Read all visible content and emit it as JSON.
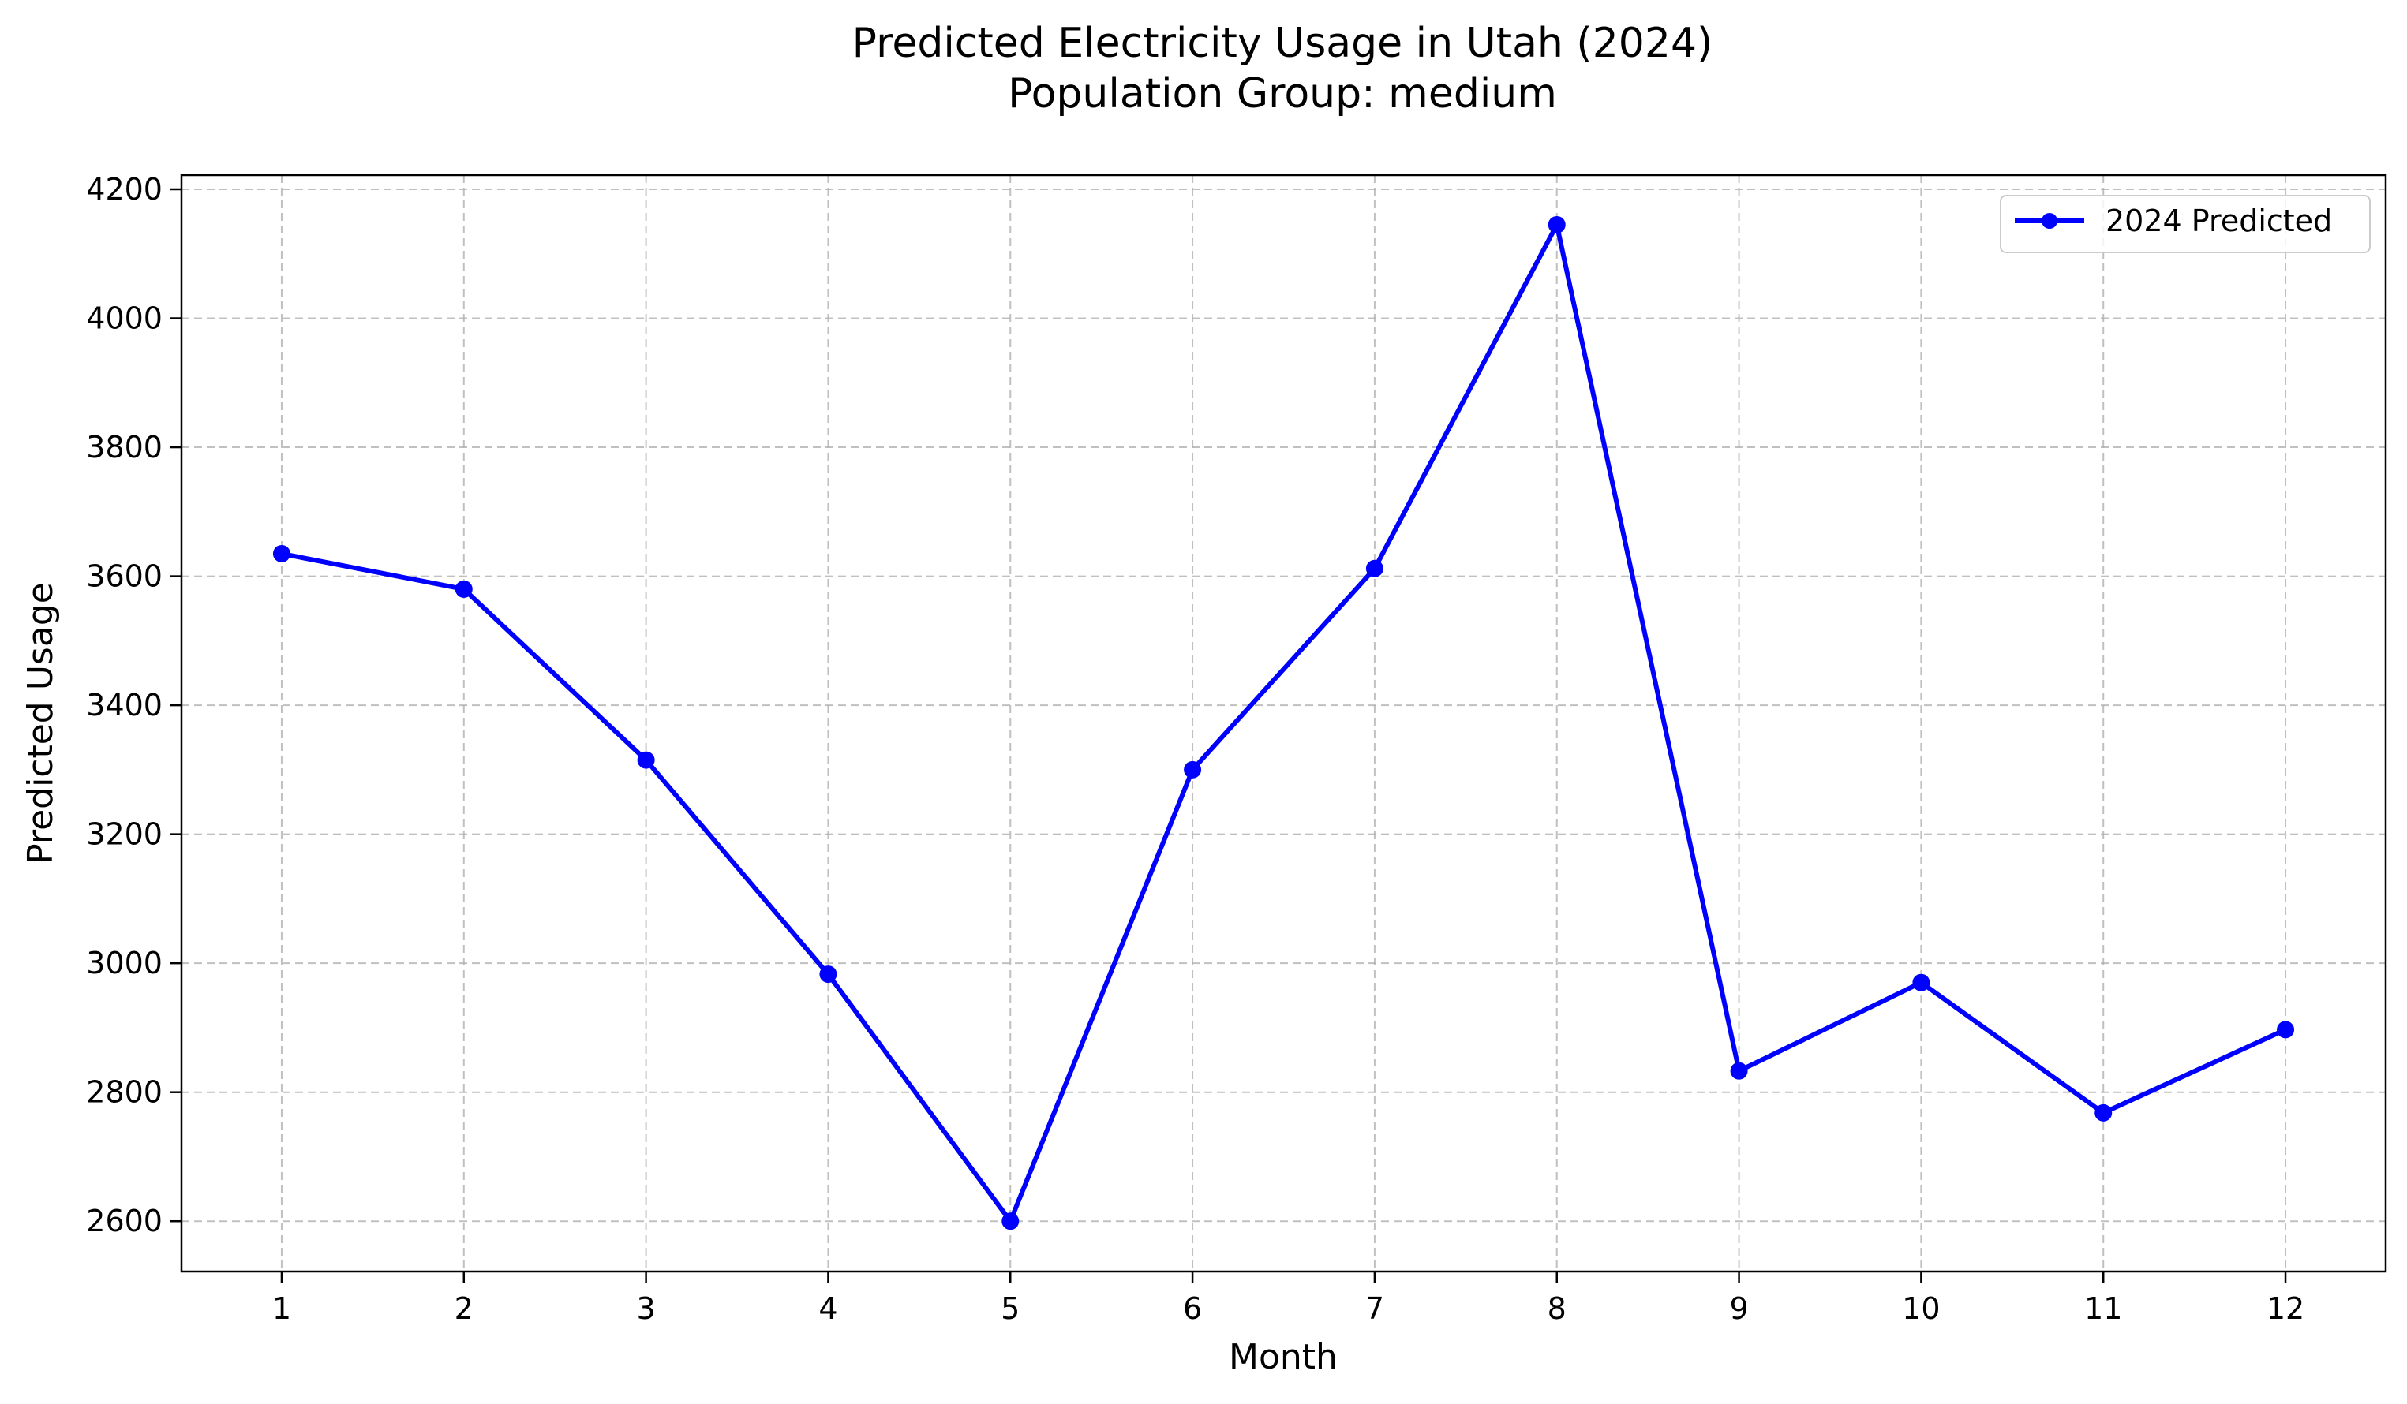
{
  "chart_data": {
    "type": "line",
    "title": "Predicted Electricity Usage in Utah (2024)",
    "subtitle": "Population Group: medium",
    "xlabel": "Month",
    "ylabel": "Predicted Usage",
    "x": [
      1,
      2,
      3,
      4,
      5,
      6,
      7,
      8,
      9,
      10,
      11,
      12
    ],
    "x_ticks": [
      "1",
      "2",
      "3",
      "4",
      "5",
      "6",
      "7",
      "8",
      "9",
      "10",
      "11",
      "12"
    ],
    "xlim": [
      0.45,
      12.55
    ],
    "y_ticks": [
      2600,
      2800,
      3000,
      3200,
      3400,
      3600,
      3800,
      4000,
      4200
    ],
    "ylim": [
      2522,
      4222
    ],
    "grid": true,
    "grid_style": "dashed",
    "legend_position": "top-right",
    "series": [
      {
        "name": "2024 Predicted",
        "color": "#0000ff",
        "marker": "circle",
        "values": [
          3635,
          3580,
          3315,
          2983,
          2600,
          3300,
          3612,
          4145,
          2833,
          2970,
          2768,
          2897
        ]
      }
    ]
  }
}
